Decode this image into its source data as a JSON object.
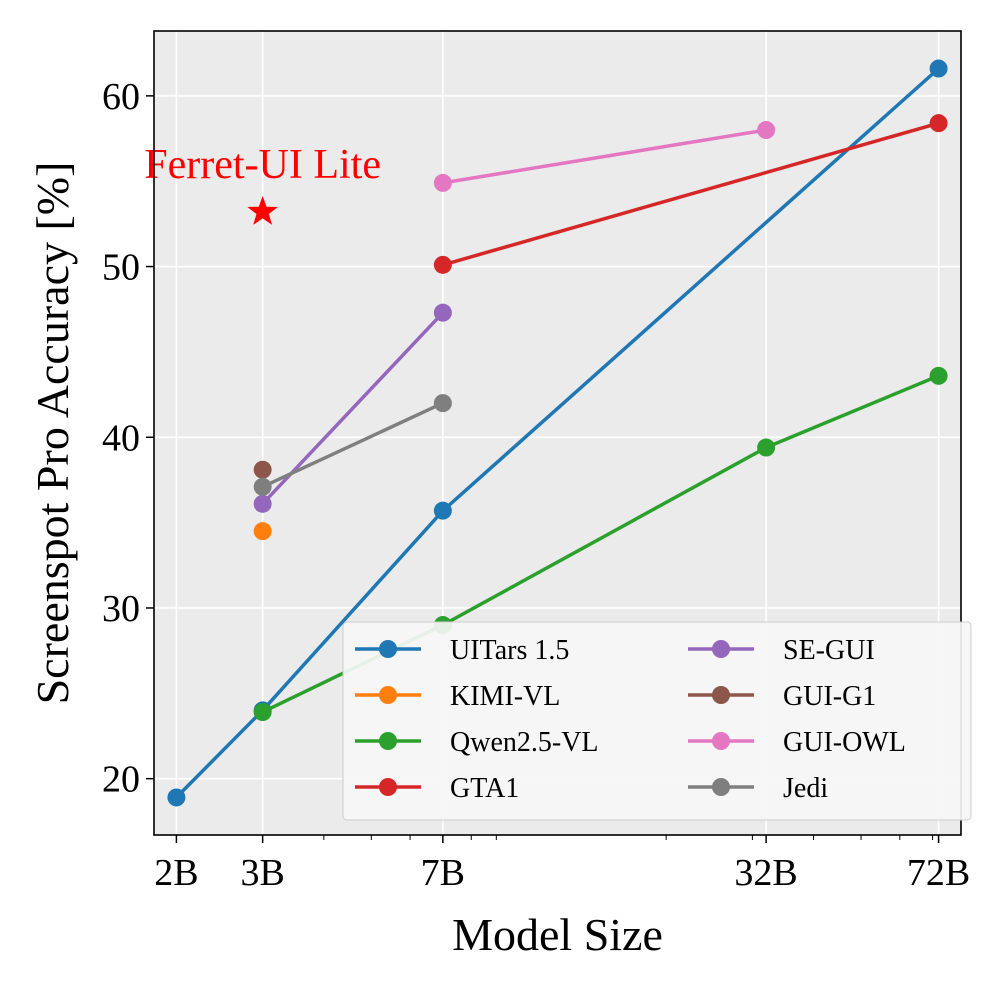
{
  "chart_data": {
    "type": "line",
    "xscale": "log",
    "xlabel": "Model Size",
    "ylabel": "Screenspot Pro Accuracy [%]",
    "ylim": [
      16.7,
      63.8
    ],
    "xlim": [
      1.8,
      80
    ],
    "grid": true,
    "legend_position": "lower-right",
    "x_ticks": [
      {
        "value": 2,
        "label": "2B"
      },
      {
        "value": 3,
        "label": "3B"
      },
      {
        "value": 7,
        "label": "7B"
      },
      {
        "value": 32,
        "label": "32B"
      },
      {
        "value": 72,
        "label": "72B"
      }
    ],
    "y_ticks": [
      20,
      30,
      40,
      50,
      60
    ],
    "series": [
      {
        "name": "UITars 1.5",
        "color": "#1f77b4",
        "points": [
          [
            2,
            18.9
          ],
          [
            3,
            24.0
          ],
          [
            7,
            35.7
          ],
          [
            72,
            61.6
          ]
        ]
      },
      {
        "name": "KIMI-VL",
        "color": "#ff7f0e",
        "points": [
          [
            3,
            34.5
          ]
        ]
      },
      {
        "name": "Qwen2.5-VL",
        "color": "#2ca02c",
        "points": [
          [
            3,
            23.9
          ],
          [
            7,
            29.0
          ],
          [
            32,
            39.4
          ],
          [
            72,
            43.6
          ]
        ]
      },
      {
        "name": "GTA1",
        "color": "#d62728",
        "points": [
          [
            7,
            50.1
          ],
          [
            72,
            58.4
          ]
        ]
      },
      {
        "name": "SE-GUI",
        "color": "#9467bd",
        "points": [
          [
            3,
            36.1
          ],
          [
            7,
            47.3
          ]
        ]
      },
      {
        "name": "GUI-G1",
        "color": "#8c564b",
        "points": [
          [
            3,
            38.1
          ]
        ]
      },
      {
        "name": "GUI-OWL",
        "color": "#e377c2",
        "points": [
          [
            7,
            54.9
          ],
          [
            32,
            58.0
          ]
        ]
      },
      {
        "name": "Jedi",
        "color": "#7f7f7f",
        "points": [
          [
            3,
            37.1
          ],
          [
            7,
            42.0
          ]
        ]
      }
    ],
    "annotation": {
      "text": "Ferret-UI Lite",
      "x": 3,
      "y": 53.2,
      "color": "#ff0000",
      "marker": "star"
    }
  }
}
